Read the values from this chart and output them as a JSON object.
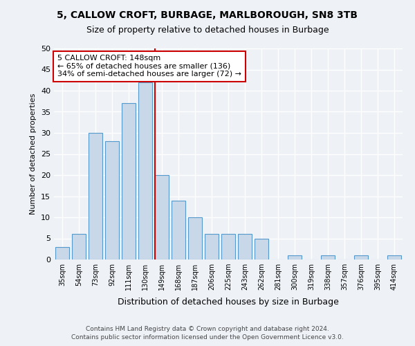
{
  "title1": "5, CALLOW CROFT, BURBAGE, MARLBOROUGH, SN8 3TB",
  "title2": "Size of property relative to detached houses in Burbage",
  "xlabel": "Distribution of detached houses by size in Burbage",
  "ylabel": "Number of detached properties",
  "categories": [
    "35sqm",
    "54sqm",
    "73sqm",
    "92sqm",
    "111sqm",
    "130sqm",
    "149sqm",
    "168sqm",
    "187sqm",
    "206sqm",
    "225sqm",
    "243sqm",
    "262sqm",
    "281sqm",
    "300sqm",
    "319sqm",
    "338sqm",
    "357sqm",
    "376sqm",
    "395sqm",
    "414sqm"
  ],
  "values": [
    3,
    6,
    30,
    28,
    37,
    42,
    20,
    14,
    10,
    6,
    6,
    6,
    5,
    0,
    1,
    0,
    1,
    0,
    1,
    0,
    1
  ],
  "bar_color": "#c8d8e8",
  "bar_edge_color": "#5599cc",
  "highlight_index": 6,
  "highlight_line_color": "#cc0000",
  "annotation_text": "5 CALLOW CROFT: 148sqm\n← 65% of detached houses are smaller (136)\n34% of semi-detached houses are larger (72) →",
  "annotation_box_color": "#ffffff",
  "annotation_box_edge": "#cc0000",
  "ylim": [
    0,
    50
  ],
  "yticks": [
    0,
    5,
    10,
    15,
    20,
    25,
    30,
    35,
    40,
    45,
    50
  ],
  "footer1": "Contains HM Land Registry data © Crown copyright and database right 2024.",
  "footer2": "Contains public sector information licensed under the Open Government Licence v3.0.",
  "bg_color": "#eef2f7"
}
